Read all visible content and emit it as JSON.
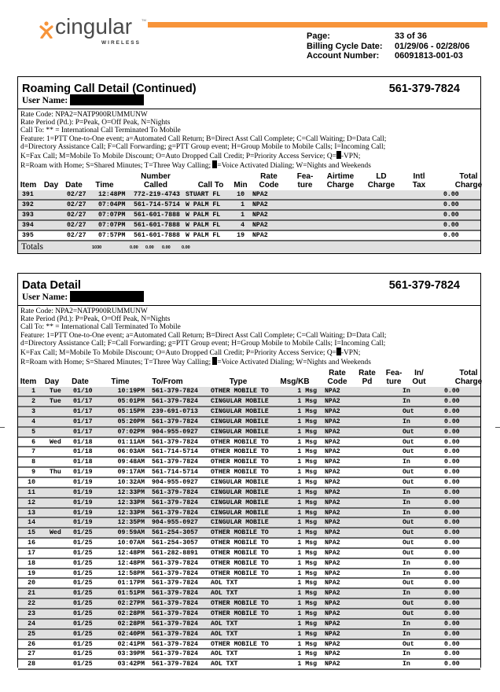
{
  "brand": {
    "name": "cingular",
    "sub": "WIRELESS",
    "tm": "TM",
    "accent": "#f7943a"
  },
  "header": {
    "labels": [
      "Page:",
      "Billing Cycle Date:",
      "Account Number:"
    ],
    "values": [
      "33 of 36",
      "01/29/06 - 02/28/06",
      "06091813-001-03"
    ]
  },
  "roaming": {
    "title": "Roaming Call Detail (Continued)",
    "phone": "561-379-7824",
    "user_label": "User Name:",
    "legend": [
      "Rate Code: NPA2=NATP900RUMMUNW",
      "Rate Period (Pd.): P=Peak, O=Off Peak, N=Nights",
      "Call To: ** = International Call Terminated To Mobile",
      "Feature:  1=PTT One-to-One event; a=Automated Call Return; B=Direct Asst Call Complete; C=Call Waiting; D=Data Call;",
      "d=Directory Assistance Call; F=Call Forwarding; g=PTT Group event; H=Group Mobile to Mobile Calls; I=Incoming Call;",
      "K=Fax Call; M=Mobile To Mobile Discount; O=Auto Dropped Call Credit; P=Priority Access Service; Q=",
      "-VPN;",
      "R=Roam with Home; S=Shared Minutes; T=Three Way Calling; ",
      "=Voice Activated Dialing; W=Nights and Weekends"
    ],
    "columns": [
      "Item",
      "Day",
      "Date",
      "Time",
      "Number\nCalled",
      "Call To",
      "Min",
      "Rate\nCode",
      "Fea-\nture",
      "Airtime\nCharge",
      "LD\nCharge",
      "Intl\nTax",
      "Total\nCharge"
    ],
    "rows": [
      {
        "shade": true,
        "cells": [
          "391",
          "",
          "02/27",
          "12:48PM",
          "772-219-4743",
          "STUART FL",
          "10",
          "NPA2",
          "",
          "",
          "",
          "",
          "0.00"
        ]
      },
      {
        "shade": true,
        "cells": [
          "392",
          "",
          "02/27",
          "07:04PM",
          "561-714-5714",
          "W PALM FL",
          "1",
          "NPA2",
          "",
          "",
          "",
          "",
          "0.00"
        ]
      },
      {
        "shade": true,
        "cells": [
          "393",
          "",
          "02/27",
          "07:07PM",
          "561-601-7888",
          "W PALM FL",
          "1",
          "NPA2",
          "",
          "",
          "",
          "",
          "0.00"
        ]
      },
      {
        "shade": true,
        "cells": [
          "394",
          "",
          "02/27",
          "07:07PM",
          "561-601-7888",
          "W PALM FL",
          "4",
          "NPA2",
          "",
          "",
          "",
          "",
          "0.00"
        ]
      },
      {
        "shade": false,
        "cells": [
          "395",
          "",
          "02/27",
          "07:57PM",
          "561-601-7888",
          "W PALM FL",
          "19",
          "NPA2",
          "",
          "",
          "",
          "",
          "0.00"
        ]
      }
    ],
    "totals": {
      "label": "Totals",
      "values": [
        "1030",
        "0.00",
        "0.00",
        "0.00",
        "0.00"
      ]
    }
  },
  "data_detail": {
    "title": "Data Detail",
    "phone": "561-379-7824",
    "user_label": "User Name:",
    "legend": [
      "Rate Code: NPA2=NATP900RUMMUNW",
      "Rate Period (Pd.): P=Peak, O=Off Peak, N=Nights",
      "Call To: ** = International Call Terminated To Mobile",
      "Feature:  1=PTT One-to-One event; a=Automated Call Return; B=Direct Asst Call Complete; C=Call Waiting; D=Data Call;",
      "d=Directory Assistance Call; F=Call Forwarding; g=PTT Group event; H=Group Mobile to Mobile Calls; I=Incoming Call;",
      "K=Fax Call; M=Mobile To Mobile Discount; O=Auto Dropped Call Credit; P=Priority Access Service; Q=",
      "-VPN;",
      "R=Roam with Home; S=Shared Minutes; T=Three Way Calling; ",
      "=Voice Activated Dialing; W=Nights and Weekends"
    ],
    "columns": [
      "Item",
      "Day",
      "Date",
      "Time",
      "To/From",
      "Type",
      "Msg/KB",
      "Rate\nCode",
      "Rate\nPd",
      "Fea-\nture",
      "In/\nOut",
      "Total\nCharge"
    ],
    "rows": [
      [
        "1",
        "Tue",
        "01/10",
        "10:19PM",
        "561-379-7824",
        "OTHER MOBILE TO",
        "1 Msg",
        "NPA2",
        "",
        "",
        "In",
        "0.00"
      ],
      [
        "2",
        "Tue",
        "01/17",
        "05:01PM",
        "561-379-7824",
        "CINGULAR MOBILE",
        "1 Msg",
        "NPA2",
        "",
        "",
        "In",
        "0.00"
      ],
      [
        "3",
        "",
        "01/17",
        "05:15PM",
        "239-691-0713",
        "CINGULAR MOBILE",
        "1 Msg",
        "NPA2",
        "",
        "",
        "Out",
        "0.00"
      ],
      [
        "4",
        "",
        "01/17",
        "05:20PM",
        "561-379-7824",
        "CINGULAR MOBILE",
        "1 Msg",
        "NPA2",
        "",
        "",
        "In",
        "0.00"
      ],
      [
        "5",
        "",
        "01/17",
        "07:02PM",
        "904-955-0927",
        "CINGULAR MOBILE",
        "1 Msg",
        "NPA2",
        "",
        "",
        "Out",
        "0.00"
      ],
      [
        "6",
        "Wed",
        "01/18",
        "01:11AM",
        "561-379-7824",
        "OTHER MOBILE TO",
        "1 Msg",
        "NPA2",
        "",
        "",
        "Out",
        "0.00"
      ],
      [
        "7",
        "",
        "01/18",
        "06:03AM",
        "561-714-5714",
        "OTHER MOBILE TO",
        "1 Msg",
        "NPA2",
        "",
        "",
        "Out",
        "0.00"
      ],
      [
        "8",
        "",
        "01/18",
        "09:48AM",
        "561-379-7824",
        "OTHER MOBILE TO",
        "1 Msg",
        "NPA2",
        "",
        "",
        "In",
        "0.00"
      ],
      [
        "9",
        "Thu",
        "01/19",
        "09:17AM",
        "561-714-5714",
        "OTHER MOBILE TO",
        "1 Msg",
        "NPA2",
        "",
        "",
        "Out",
        "0.00"
      ],
      [
        "10",
        "",
        "01/19",
        "10:32AM",
        "904-955-0927",
        "CINGULAR MOBILE",
        "1 Msg",
        "NPA2",
        "",
        "",
        "Out",
        "0.00"
      ],
      [
        "11",
        "",
        "01/19",
        "12:33PM",
        "561-379-7824",
        "CINGULAR MOBILE",
        "1 Msg",
        "NPA2",
        "",
        "",
        "In",
        "0.00"
      ],
      [
        "12",
        "",
        "01/19",
        "12:33PM",
        "561-379-7824",
        "CINGULAR MOBILE",
        "1 Msg",
        "NPA2",
        "",
        "",
        "In",
        "0.00"
      ],
      [
        "13",
        "",
        "01/19",
        "12:33PM",
        "561-379-7824",
        "CINGULAR MOBILE",
        "1 Msg",
        "NPA2",
        "",
        "",
        "In",
        "0.00"
      ],
      [
        "14",
        "",
        "01/19",
        "12:35PM",
        "904-955-0927",
        "CINGULAR MOBILE",
        "1 Msg",
        "NPA2",
        "",
        "",
        "Out",
        "0.00"
      ],
      [
        "15",
        "Wed",
        "01/25",
        "09:59AM",
        "561-254-3057",
        "OTHER MOBILE TO",
        "1 Msg",
        "NPA2",
        "",
        "",
        "Out",
        "0.00"
      ],
      [
        "16",
        "",
        "01/25",
        "10:07AM",
        "561-254-3057",
        "OTHER MOBILE TO",
        "1 Msg",
        "NPA2",
        "",
        "",
        "Out",
        "0.00"
      ],
      [
        "17",
        "",
        "01/25",
        "12:48PM",
        "561-282-8891",
        "OTHER MOBILE TO",
        "1 Msg",
        "NPA2",
        "",
        "",
        "Out",
        "0.00"
      ],
      [
        "18",
        "",
        "01/25",
        "12:48PM",
        "561-379-7824",
        "OTHER MOBILE TO",
        "1 Msg",
        "NPA2",
        "",
        "",
        "In",
        "0.00"
      ],
      [
        "19",
        "",
        "01/25",
        "12:58PM",
        "561-379-7824",
        "OTHER MOBILE TO",
        "1 Msg",
        "NPA2",
        "",
        "",
        "In",
        "0.00"
      ],
      [
        "20",
        "",
        "01/25",
        "01:17PM",
        "561-379-7824",
        "AOL TXT",
        "1 Msg",
        "NPA2",
        "",
        "",
        "Out",
        "0.00"
      ],
      [
        "21",
        "",
        "01/25",
        "01:51PM",
        "561-379-7824",
        "AOL TXT",
        "1 Msg",
        "NPA2",
        "",
        "",
        "In",
        "0.00"
      ],
      [
        "22",
        "",
        "01/25",
        "02:27PM",
        "561-379-7824",
        "OTHER MOBILE TO",
        "1 Msg",
        "NPA2",
        "",
        "",
        "Out",
        "0.00"
      ],
      [
        "23",
        "",
        "01/25",
        "02:28PM",
        "561-379-7824",
        "OTHER MOBILE TO",
        "1 Msg",
        "NPA2",
        "",
        "",
        "Out",
        "0.00"
      ],
      [
        "24",
        "",
        "01/25",
        "02:28PM",
        "561-379-7824",
        "AOL TXT",
        "1 Msg",
        "NPA2",
        "",
        "",
        "In",
        "0.00"
      ],
      [
        "25",
        "",
        "01/25",
        "02:40PM",
        "561-379-7824",
        "AOL TXT",
        "1 Msg",
        "NPA2",
        "",
        "",
        "In",
        "0.00"
      ],
      [
        "26",
        "",
        "01/25",
        "02:41PM",
        "561-379-7824",
        "OTHER MOBILE TO",
        "1 Msg",
        "NPA2",
        "",
        "",
        "Out",
        "0.00"
      ],
      [
        "27",
        "",
        "01/25",
        "03:39PM",
        "561-379-7824",
        "AOL TXT",
        "1 Msg",
        "NPA2",
        "",
        "",
        "In",
        "0.00"
      ],
      [
        "28",
        "",
        "01/25",
        "03:42PM",
        "561-379-7824",
        "AOL TXT",
        "1 Msg",
        "NPA2",
        "",
        "",
        "In",
        "0.00"
      ]
    ]
  }
}
